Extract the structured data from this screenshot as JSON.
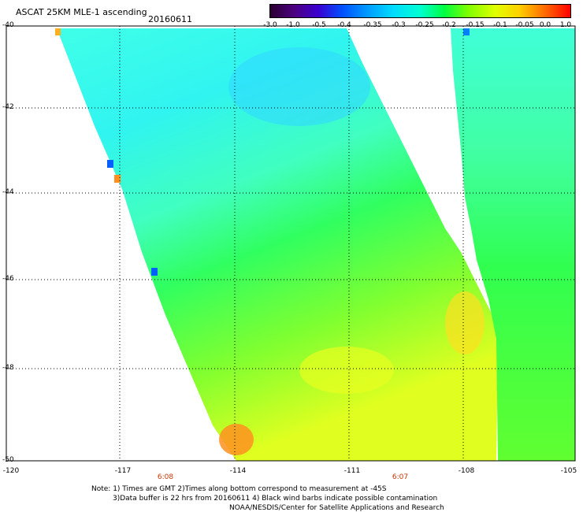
{
  "header": {
    "title": "ASCAT 25KM MLE-1 ascending",
    "date": "20160611"
  },
  "colorbar": {
    "labels": [
      "-3.0",
      "-1.0",
      "-0.5",
      "-0.4",
      "-0.35",
      "-0.3",
      "-0.25",
      "-0.2",
      "-0.15",
      "-0.1",
      "-0.05",
      "0.0",
      "1.0"
    ],
    "colors": [
      "#2a0030",
      "#4b0080",
      "#3a00d0",
      "#0050ff",
      "#00a0ff",
      "#00dcff",
      "#00ffd0",
      "#00ff40",
      "#80ff00",
      "#e0ff00",
      "#ffd000",
      "#ff7000",
      "#ff0000"
    ]
  },
  "map": {
    "y_ticks": [
      "-40",
      "-42",
      "-44",
      "-46",
      "-48",
      "-50"
    ],
    "x_ticks": [
      "-120",
      "-117",
      "-114",
      "-111",
      "-108",
      "-105"
    ],
    "pass_times": [
      "6:08",
      "6:07"
    ]
  },
  "note": {
    "line1": "Note: 1) Times are GMT 2)Times along bottom correspond to measurement at -45S",
    "line2": "3)Data buffer is 22 hrs from 20160611 4) Black wind barbs indicate possible contamination",
    "line3": "NOAA/NESDIS/Center for Satellite Applications and Research"
  }
}
